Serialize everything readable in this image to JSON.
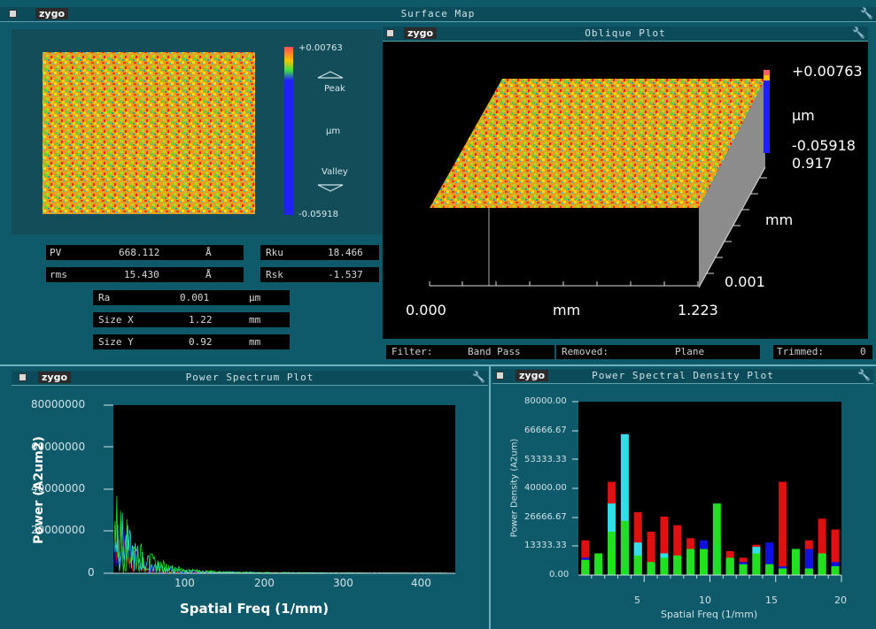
{
  "surface_map": {
    "logo": "zygo",
    "title": "Surface Map",
    "scale_top": "+0.00763",
    "peak_label": "Peak",
    "unit_label": "µm",
    "valley_label": "Valley",
    "scale_bottom": "-0.05918"
  },
  "stats": {
    "pv": {
      "label": "PV",
      "value": "668.112",
      "unit": "Å"
    },
    "rms": {
      "label": "rms",
      "value": "15.430",
      "unit": "Å"
    },
    "rku": {
      "label": "Rku",
      "value": "18.466"
    },
    "rsk": {
      "label": "Rsk",
      "value": "-1.537"
    },
    "ra": {
      "label": "Ra",
      "value": "0.001",
      "unit": "µm"
    },
    "size_x": {
      "label": "Size X",
      "value": "1.22",
      "unit": "mm"
    },
    "size_y": {
      "label": "Size Y",
      "value": "0.92",
      "unit": "mm"
    }
  },
  "oblique": {
    "logo": "zygo",
    "title": "Oblique Plot",
    "z_top": "+0.00763",
    "z_unit": "µm",
    "z_bottom": "-0.05918",
    "y_max": "0.917",
    "y_unit": "mm",
    "y_min": "0.001",
    "x_min": "0.000",
    "x_unit": "mm",
    "x_max": "1.223"
  },
  "status": {
    "filter_label": "Filter:",
    "filter_value": "Band Pass",
    "removed_label": "Removed:",
    "removed_value": "Plane",
    "trimmed_label": "Trimmed:",
    "trimmed_value": "0"
  },
  "power_spectrum": {
    "logo": "zygo",
    "title": "Power Spectrum Plot",
    "ylabel": "Power (A2um2)",
    "xlabel": "Spatial Freq (1/mm)",
    "yticks": [
      "80000000",
      "60000000",
      "40000000",
      "20000000",
      "0"
    ],
    "xticks": [
      "100",
      "200",
      "300",
      "400"
    ]
  },
  "psd": {
    "logo": "zygo",
    "title": "Power Spectral Density Plot",
    "ylabel": "Power Density (A2um)",
    "xlabel": "Spatial Freq (1/mm)",
    "yticks": [
      "80000.00",
      "66666.67",
      "53333.33",
      "40000.00",
      "26666.67",
      "13333.33",
      "0.00"
    ],
    "xticks": [
      "5",
      "10",
      "15",
      "20"
    ]
  },
  "colors": {
    "frame": "#0e5a6a",
    "red": "#e01010",
    "blue": "#1010e0",
    "cyan": "#30e0e8",
    "green": "#20e020"
  },
  "chart_data": [
    {
      "type": "bar",
      "title": "Power Spectral Density Plot",
      "xlabel": "Spatial Freq (1/mm)",
      "ylabel": "Power Density (A2um)",
      "ylim": [
        0,
        80000
      ],
      "xlim": [
        0,
        20
      ],
      "x": [
        1,
        2,
        3,
        4,
        5,
        6,
        7,
        8,
        9,
        10,
        11,
        12,
        13,
        14,
        15,
        16,
        17,
        18,
        19,
        20
      ],
      "series": [
        {
          "values": [
            16000,
            9000,
            43000,
            24000,
            29000,
            20000,
            27000,
            23000,
            17000,
            15000,
            17000,
            11000,
            8000,
            14000,
            12000,
            43000,
            11000,
            16000,
            26000,
            21000
          ]
        },
        {
          "values": [
            8000,
            6000,
            32000,
            65000,
            13000,
            4000,
            10000,
            8000,
            8000,
            16000,
            14000,
            5000,
            6000,
            8000,
            15000,
            4000,
            9000,
            12000,
            10000,
            6000
          ]
        },
        {
          "values": [
            5000,
            6000,
            33000,
            65000,
            15000,
            5000,
            10000,
            9000,
            11000,
            7000,
            6000,
            7000,
            4000,
            13000,
            4000,
            3000,
            12000,
            3000,
            9000,
            4000
          ]
        },
        {
          "values": [
            7000,
            10000,
            20000,
            25000,
            9000,
            6000,
            8000,
            9000,
            12000,
            12000,
            33000,
            8000,
            5000,
            10000,
            5000,
            3000,
            12000,
            3000,
            10000,
            4000
          ]
        }
      ]
    },
    {
      "type": "line",
      "title": "Power Spectrum Plot",
      "xlabel": "Spatial Freq (1/mm)",
      "ylabel": "Power (A2um2)",
      "ylim": [
        0,
        80000000
      ],
      "xlim": [
        0,
        450
      ]
    }
  ]
}
